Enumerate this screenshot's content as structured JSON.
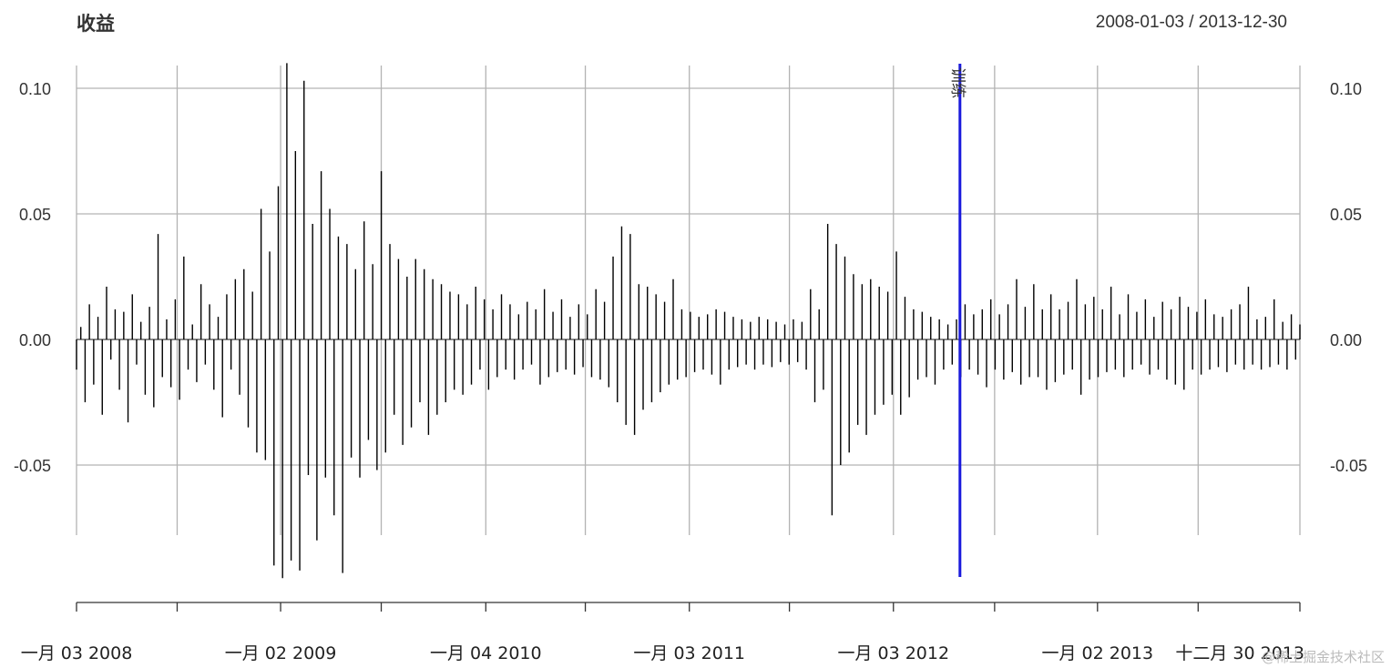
{
  "header": {
    "title": "收益",
    "date_range": "2008-01-03 / 2013-12-30"
  },
  "watermark": "@稀土掘金技术社区",
  "chart_data": {
    "type": "line",
    "style": "histogram-like vertical lines",
    "title": "收益",
    "date_range_label": "2008-01-03 / 2013-12-30",
    "x_start": "2008-01-03",
    "x_end": "2013-12-30",
    "ylim": [
      -0.095,
      0.11
    ],
    "grid": true,
    "y_ticks": [
      {
        "value": 0.1,
        "label": "0.10"
      },
      {
        "value": 0.05,
        "label": "0.05"
      },
      {
        "value": 0.0,
        "label": "0.00"
      },
      {
        "value": -0.05,
        "label": "-0.05"
      }
    ],
    "x_tick_labels": [
      {
        "date": "2008-01-03",
        "label": "一月 03 2008"
      },
      {
        "date": "2009-01-02",
        "label": "一月 02 2009"
      },
      {
        "date": "2010-01-04",
        "label": "一月 04 2010"
      },
      {
        "date": "2011-01-03",
        "label": "一月 03 2011"
      },
      {
        "date": "2012-01-03",
        "label": "一月 03 2012"
      },
      {
        "date": "2013-01-02",
        "label": "一月 02 2013"
      },
      {
        "date": "2013-12-30",
        "label": "十二月 30 2013"
      }
    ],
    "x_minor_ticks": [
      "2008-07-01",
      "2009-07-01",
      "2010-07-01",
      "2011-07-01",
      "2012-07-02",
      "2013-07-01"
    ],
    "event_line": {
      "date": "2012-05-01",
      "label": "训练",
      "color": "#1a1adc"
    },
    "series_color": "#000000",
    "series": [
      {
        "values": [
          -0.012,
          0.005,
          -0.025,
          0.014,
          -0.018,
          0.009,
          -0.03,
          0.021,
          -0.008,
          0.012,
          -0.02,
          0.011,
          -0.033,
          0.018,
          -0.01,
          0.007,
          -0.022,
          0.013,
          -0.027,
          0.042,
          -0.015,
          0.008,
          -0.019,
          0.016,
          -0.024,
          0.033,
          -0.012,
          0.006,
          -0.017,
          0.022,
          -0.01,
          0.014,
          -0.02,
          0.009,
          -0.031,
          0.018,
          -0.012,
          0.024,
          -0.022,
          0.028,
          -0.035,
          0.019,
          -0.045,
          0.052,
          -0.048,
          0.035,
          -0.09,
          0.061,
          -0.095,
          0.11,
          -0.088,
          0.075,
          -0.092,
          0.103,
          -0.054,
          0.046,
          -0.08,
          0.067,
          -0.055,
          0.052,
          -0.07,
          0.041,
          -0.093,
          0.038,
          -0.047,
          0.028,
          -0.055,
          0.047,
          -0.04,
          0.03,
          -0.052,
          0.067,
          -0.045,
          0.038,
          -0.03,
          0.032,
          -0.042,
          0.025,
          -0.035,
          0.032,
          -0.025,
          0.028,
          -0.038,
          0.024,
          -0.03,
          0.022,
          -0.025,
          0.019,
          -0.02,
          0.018,
          -0.022,
          0.014,
          -0.018,
          0.021,
          -0.012,
          0.016,
          -0.02,
          0.012,
          -0.015,
          0.018,
          -0.012,
          0.014,
          -0.016,
          0.01,
          -0.012,
          0.015,
          -0.01,
          0.012,
          -0.018,
          0.02,
          -0.015,
          0.011,
          -0.013,
          0.016,
          -0.012,
          0.009,
          -0.014,
          0.014,
          -0.011,
          0.01,
          -0.015,
          0.02,
          -0.016,
          0.015,
          -0.019,
          0.033,
          -0.025,
          0.045,
          -0.034,
          0.042,
          -0.038,
          0.022,
          -0.028,
          0.021,
          -0.025,
          0.018,
          -0.021,
          0.015,
          -0.018,
          0.024,
          -0.016,
          0.012,
          -0.015,
          0.011,
          -0.013,
          0.009,
          -0.012,
          0.01,
          -0.014,
          0.012,
          -0.018,
          0.011,
          -0.012,
          0.009,
          -0.011,
          0.008,
          -0.01,
          0.007,
          -0.012,
          0.009,
          -0.01,
          0.008,
          -0.011,
          0.007,
          -0.009,
          0.006,
          -0.01,
          0.008,
          -0.009,
          0.007,
          -0.012,
          0.02,
          -0.025,
          0.012,
          -0.02,
          0.046,
          -0.07,
          0.038,
          -0.05,
          0.033,
          -0.045,
          0.026,
          -0.034,
          0.022,
          -0.038,
          0.024,
          -0.03,
          0.021,
          -0.026,
          0.019,
          -0.022,
          0.035,
          -0.03,
          0.017,
          -0.023,
          0.012,
          -0.016,
          0.011,
          -0.015,
          0.009,
          -0.018,
          0.008,
          -0.012,
          0.006,
          -0.01,
          0.008,
          -0.015,
          0.014,
          -0.012,
          0.01,
          -0.014,
          0.012,
          -0.019,
          0.016,
          -0.012,
          0.01,
          -0.016,
          0.014,
          -0.013,
          0.024,
          -0.018,
          0.013,
          -0.015,
          0.022,
          -0.015,
          0.012,
          -0.02,
          0.018,
          -0.017,
          0.012,
          -0.014,
          0.015,
          -0.012,
          0.024,
          -0.022,
          0.014,
          -0.016,
          0.017,
          -0.015,
          0.012,
          -0.013,
          0.021,
          -0.012,
          0.01,
          -0.015,
          0.018,
          -0.012,
          0.011,
          -0.01,
          0.016,
          -0.014,
          0.009,
          -0.012,
          0.015,
          -0.016,
          0.012,
          -0.018,
          0.017,
          -0.02,
          0.013,
          -0.012,
          0.011,
          -0.014,
          0.016,
          -0.012,
          0.01,
          -0.011,
          0.009,
          -0.013,
          0.012,
          -0.01,
          0.014,
          -0.012,
          0.021,
          -0.01,
          0.008,
          -0.012,
          0.009,
          -0.011,
          0.016,
          -0.01,
          0.007,
          -0.012,
          0.01,
          -0.008,
          0.006
        ]
      }
    ]
  }
}
